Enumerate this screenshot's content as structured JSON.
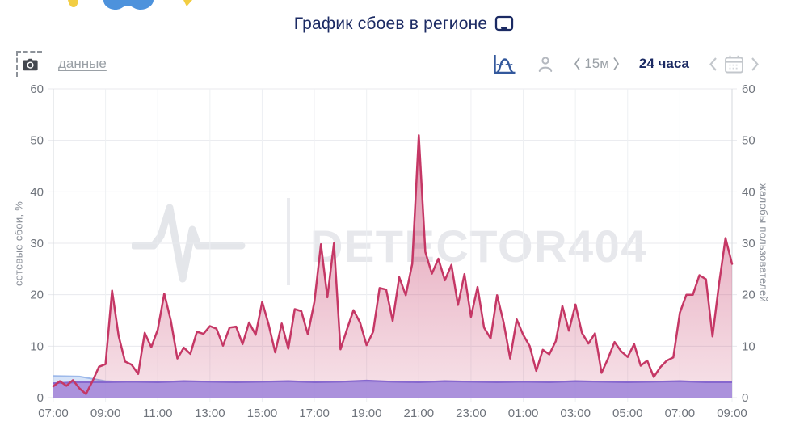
{
  "page": {
    "title": "График сбоев в регионе"
  },
  "decor": {
    "top_emoji_fragments": [
      "yellow-fragment",
      "blue-wave-fragment",
      "yellow-fragment"
    ]
  },
  "toolbar": {
    "data_link": "данные",
    "interval_option": "15м",
    "period_selected": "24 часа"
  },
  "icons": {
    "screenshot-camera": "camera",
    "chart-distribution": "bell-curve",
    "user": "person-silhouette",
    "interval-brackets": "⟨ ⟩",
    "calendar": "calendar",
    "chevron-left": "‹",
    "chevron-right": "›",
    "monitor": "display"
  },
  "watermark": {
    "text": "DETECTOR404"
  },
  "colors": {
    "accent_navy": "#1b2a63",
    "outage_line": "#c53765",
    "complaints_line": "#8667ce",
    "complaints_fill": "rgba(167,140,219,0.92)",
    "baseline_blue_line": "#9db9ea",
    "baseline_blue_fill": "rgba(163,192,240,0.45)",
    "watermark_gray": "#e7e8ec",
    "toolbar_icon_blue": "#33589c",
    "muted_text": "#9aa0a6",
    "tick_text": "#6f747c",
    "grid": "#e8eaee"
  },
  "chart_data": {
    "type": "area",
    "title": "График сбоев в регионе",
    "ylabel_left": "сетевые сбои, %",
    "ylabel_right": "жалобы пользователей",
    "ylim": [
      0,
      60
    ],
    "yticks": [
      0,
      10,
      20,
      30,
      40,
      50,
      60
    ],
    "x_hours_span": 26,
    "xtick_step_hours": 2,
    "xtick_labels": [
      "07:00",
      "09:00",
      "11:00",
      "13:00",
      "15:00",
      "17:00",
      "19:00",
      "21:00",
      "23:00",
      "01:00",
      "03:00",
      "05:00",
      "07:00",
      "09:00"
    ],
    "grid": true,
    "legend": "none",
    "series": [
      {
        "name": "сетевые сбои, %",
        "axis": "left",
        "line_color": "#c53765",
        "fill": "red-gradient",
        "interval_minutes": 15,
        "values": [
          2.2,
          3.2,
          2.3,
          3.4,
          1.8,
          0.7,
          3.2,
          6.0,
          6.5,
          20.8,
          12.0,
          7.0,
          6.4,
          4.6,
          12.6,
          9.8,
          13.2,
          20.2,
          15.0,
          7.6,
          9.7,
          8.5,
          12.8,
          12.4,
          13.9,
          13.4,
          10.1,
          13.6,
          13.8,
          10.4,
          14.6,
          12.2,
          18.6,
          14.2,
          8.8,
          14.4,
          9.5,
          17.2,
          16.8,
          12.3,
          18.6,
          29.8,
          19.5,
          30.0,
          9.4,
          13.3,
          17.0,
          14.6,
          10.2,
          12.8,
          21.3,
          21.0,
          14.9,
          23.4,
          19.9,
          26.0,
          51.0,
          28.3,
          24.1,
          27.0,
          22.8,
          25.8,
          18.0,
          24.0,
          15.7,
          21.5,
          13.6,
          11.5,
          19.9,
          14.6,
          7.6,
          15.2,
          12.2,
          10.0,
          5.2,
          9.3,
          8.4,
          11.0,
          17.8,
          13.0,
          18.1,
          12.6,
          10.5,
          12.5,
          4.8,
          7.6,
          10.8,
          9.0,
          7.9,
          10.4,
          6.2,
          7.2,
          4.0,
          5.9,
          7.2,
          7.8,
          16.5,
          20.0,
          20.0,
          23.8,
          23.0,
          11.9,
          22.0,
          31.0,
          26.0
        ]
      },
      {
        "name": "жалобы пользователей",
        "axis": "right",
        "line_color": "#8667ce",
        "fill_color": "rgba(167,140,219,0.92)",
        "interval_minutes": 60,
        "values": [
          2.8,
          3.0,
          3.0,
          3.1,
          3.0,
          3.2,
          3.1,
          3.0,
          3.1,
          3.2,
          3.0,
          3.1,
          3.3,
          3.1,
          3.0,
          3.2,
          3.1,
          3.0,
          3.1,
          3.0,
          3.2,
          3.1,
          3.0,
          3.1,
          3.2,
          3.0,
          3.0
        ]
      },
      {
        "name": "baseline-blue",
        "axis": "left",
        "line_color": "#9db9ea",
        "fill_color": "rgba(163,192,240,0.45)",
        "interval_minutes": 60,
        "values": [
          4.2,
          4.1,
          3.2,
          3.0,
          3.0,
          3.0,
          3.0,
          3.0,
          3.0,
          3.0,
          3.0,
          3.0,
          3.0,
          3.0,
          3.0,
          3.0,
          3.0,
          3.0,
          3.0,
          3.0,
          3.0,
          3.0,
          3.0,
          3.0,
          3.0,
          3.0,
          3.0
        ]
      }
    ]
  }
}
